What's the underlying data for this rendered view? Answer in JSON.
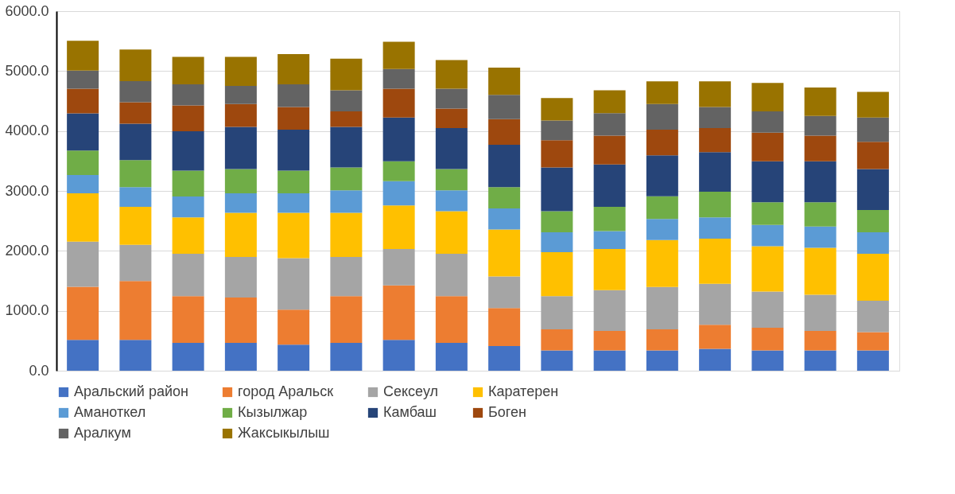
{
  "chart_data": {
    "type": "bar",
    "stacked": true,
    "categories": [
      null,
      null,
      null,
      null,
      null,
      null,
      null,
      null,
      null,
      null,
      null,
      null,
      null,
      null,
      null,
      null
    ],
    "ylim": [
      0,
      6000
    ],
    "yticks": [
      {
        "value": 0,
        "label": "0.0"
      },
      {
        "value": 1000,
        "label": "1000.0"
      },
      {
        "value": 2000,
        "label": "2000.0"
      },
      {
        "value": 3000,
        "label": "3000.0"
      },
      {
        "value": 4000,
        "label": "4000.0"
      },
      {
        "value": 5000,
        "label": "5000.0"
      },
      {
        "value": 6000,
        "label": "6000.0"
      }
    ],
    "grid": "y",
    "legend": "bottom",
    "tick_labels": "y",
    "series": [
      {
        "name": "Аральский район",
        "color": "#4472c4",
        "values": [
          515,
          515,
          463,
          463,
          436,
          463,
          515,
          463,
          410,
          339,
          339,
          339,
          366,
          339,
          339,
          339
        ]
      },
      {
        "name": "город Аральск",
        "color": "#ed7d31",
        "values": [
          886,
          982,
          783,
          757,
          582,
          783,
          908,
          783,
          634,
          352,
          326,
          352,
          400,
          379,
          326,
          305
        ]
      },
      {
        "name": "Сексеул",
        "color": "#a5a5a5",
        "values": [
          753,
          604,
          706,
          679,
          859,
          653,
          608,
          706,
          529,
          555,
          679,
          706,
          684,
          604,
          604,
          523
        ]
      },
      {
        "name": "Каратерен",
        "color": "#ffc000",
        "values": [
          806,
          635,
          608,
          735,
          757,
          735,
          727,
          708,
          783,
          732,
          687,
          784,
          753,
          757,
          783,
          785
        ]
      },
      {
        "name": "Аманоткел",
        "color": "#5b9bd5",
        "values": [
          304,
          326,
          347,
          326,
          326,
          375,
          404,
          349,
          353,
          331,
          299,
          352,
          357,
          353,
          353,
          357
        ]
      },
      {
        "name": "Кызылжар",
        "color": "#70ad47",
        "values": [
          410,
          453,
          432,
          406,
          379,
          383,
          331,
          357,
          353,
          351,
          406,
          378,
          427,
          379,
          406,
          374
        ]
      },
      {
        "name": "Камбаш",
        "color": "#264478",
        "values": [
          621,
          608,
          656,
          704,
          682,
          678,
          732,
          682,
          708,
          732,
          704,
          684,
          660,
          682,
          682,
          683
        ]
      },
      {
        "name": "Боген",
        "color": "#9e480e",
        "values": [
          410,
          357,
          432,
          380,
          380,
          256,
          480,
          326,
          429,
          454,
          481,
          426,
          401,
          481,
          428,
          453
        ]
      },
      {
        "name": "Аралкум",
        "color": "#636363",
        "values": [
          304,
          353,
          353,
          303,
          379,
          352,
          330,
          331,
          404,
          330,
          378,
          429,
          353,
          352,
          330,
          406
        ]
      },
      {
        "name": "Жаксыкылыш",
        "color": "#997300",
        "values": [
          498,
          528,
          457,
          484,
          502,
          529,
          453,
          479,
          454,
          374,
          379,
          378,
          427,
          475,
          476,
          427
        ]
      }
    ]
  }
}
